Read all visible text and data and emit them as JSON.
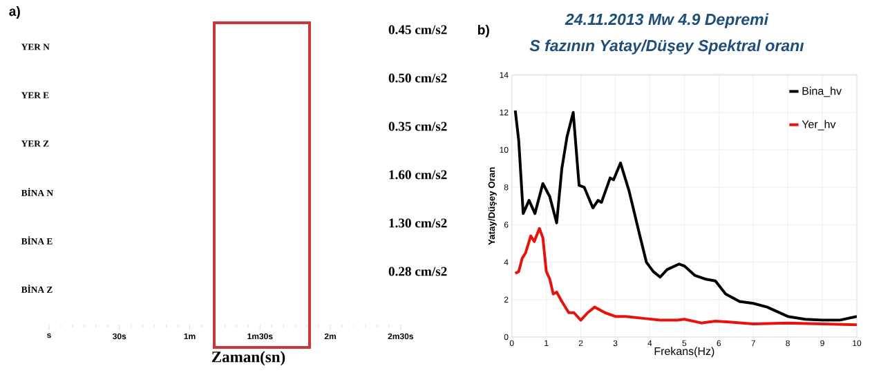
{
  "chart_data": [
    {
      "type": "other",
      "xlabel": "Zaman(sn)",
      "categories": [
        "s",
        "30s",
        "1m",
        "1m30s",
        "2m",
        "2m30s"
      ],
      "annotations": [
        "a)",
        "YER N",
        "0.45 cm/s2",
        "YER E",
        "0.50 cm/s2",
        "YER Z",
        "0.35 cm/s2",
        "BİNA N",
        "1.60 cm/s2",
        "BİNA E",
        "1.30 cm/s2",
        "BİNA Z",
        "0.28 cm/s2"
      ]
    },
    {
      "type": "line",
      "title": "24.11.2013 Mw 4.9 Depremi",
      "subtitle": "S fazının Yatay/Düşey Spektral oranı",
      "xlabel": "Frekans(Hz)",
      "ylabel": "Yatay/Düşey Oran",
      "xlim": [
        0,
        10
      ],
      "xticks": [
        0,
        1,
        2,
        3,
        4,
        5,
        6,
        7,
        8,
        9,
        10
      ],
      "ylim": [
        0,
        14
      ],
      "yticks": [
        0,
        2,
        4,
        6,
        8,
        10,
        12,
        14
      ],
      "grid": true,
      "legend": "top right",
      "annotations": [
        "b)"
      ],
      "series": [
        {
          "name": "Bina_hv",
          "color": "#000000",
          "x": [
            0.1,
            0.2,
            0.33,
            0.5,
            0.67,
            0.9,
            1.1,
            1.3,
            1.45,
            1.6,
            1.78,
            1.95,
            2.1,
            2.35,
            2.5,
            2.6,
            2.85,
            2.95,
            3.15,
            3.4,
            3.7,
            3.9,
            4.1,
            4.3,
            4.5,
            4.85,
            5.0,
            5.3,
            5.6,
            5.9,
            6.2,
            6.6,
            7.0,
            7.4,
            8.0,
            8.5,
            9.0,
            9.5,
            10.0
          ],
          "values": [
            12.1,
            10.5,
            6.6,
            7.3,
            6.6,
            8.2,
            7.5,
            6.1,
            9.0,
            10.7,
            12.0,
            8.1,
            8.0,
            6.9,
            7.3,
            7.2,
            8.5,
            8.4,
            9.3,
            7.8,
            5.5,
            4.0,
            3.5,
            3.2,
            3.6,
            3.9,
            3.8,
            3.3,
            3.1,
            3.0,
            2.3,
            1.9,
            1.8,
            1.6,
            1.1,
            0.95,
            0.9,
            0.9,
            1.1
          ]
        },
        {
          "name": "Yer_hv",
          "color": "#e8120c",
          "x": [
            0.1,
            0.2,
            0.3,
            0.4,
            0.55,
            0.65,
            0.8,
            0.9,
            1.0,
            1.1,
            1.2,
            1.3,
            1.45,
            1.65,
            1.8,
            2.0,
            2.2,
            2.4,
            2.7,
            3.0,
            3.3,
            3.8,
            4.3,
            4.8,
            5.0,
            5.5,
            5.9,
            6.3,
            7.0,
            8.0,
            9.0,
            10.0
          ],
          "values": [
            3.4,
            3.5,
            4.2,
            4.5,
            5.4,
            5.1,
            5.8,
            5.3,
            3.5,
            3.1,
            2.3,
            2.4,
            1.9,
            1.3,
            1.3,
            0.9,
            1.3,
            1.6,
            1.3,
            1.1,
            1.1,
            1.0,
            0.9,
            0.9,
            0.95,
            0.75,
            0.85,
            0.8,
            0.7,
            0.75,
            0.7,
            0.65
          ]
        }
      ]
    }
  ]
}
